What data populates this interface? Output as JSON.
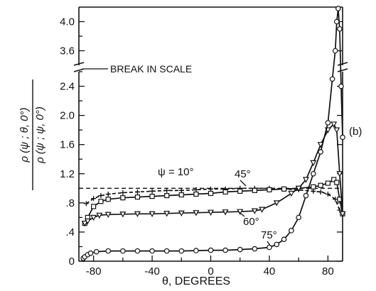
{
  "chart_data": {
    "type": "line",
    "panel_tag": "(b)",
    "xlabel": "θ, DEGREES",
    "ylabel_numerator": "ρ (ψ ; θ, 0°)",
    "ylabel_denominator": "ρ (ψ ; ψ, 0°)",
    "break_label": "BREAK IN SCALE",
    "x_ticks": [
      "-80",
      "-40",
      "0",
      "40",
      "80"
    ],
    "y_ticks_lower": [
      "0",
      ".4",
      ".8",
      "1.2",
      "1.6",
      "2.0",
      "2.4"
    ],
    "y_ticks_upper": [
      "3.6",
      "4.0"
    ],
    "xlim": [
      -90,
      90
    ],
    "ylim_lower": [
      0,
      2.6
    ],
    "ylim_upper": [
      3.4,
      4.2
    ],
    "reference_line_y": 1.0,
    "series": [
      {
        "name": "ψ = 10°",
        "marker": "plus",
        "x": [
          -85,
          -80,
          -75,
          -70,
          -60,
          -50,
          -40,
          -30,
          -20,
          -10,
          0,
          10,
          20,
          30,
          40,
          50,
          60,
          70,
          75,
          80,
          85,
          88
        ],
        "y": [
          0.79,
          0.86,
          0.9,
          0.92,
          0.94,
          0.95,
          0.96,
          0.97,
          0.97,
          0.98,
          0.99,
          0.99,
          1.0,
          1.0,
          1.0,
          0.99,
          0.98,
          0.96,
          0.95,
          0.92,
          0.85,
          0.7
        ]
      },
      {
        "name": "45°",
        "marker": "square",
        "x": [
          -86,
          -84,
          -80,
          -75,
          -70,
          -60,
          -50,
          -40,
          -30,
          -20,
          -10,
          0,
          10,
          20,
          30,
          40,
          50,
          60,
          70,
          75,
          80,
          84,
          86,
          88,
          90
        ],
        "y": [
          0.52,
          0.6,
          0.75,
          0.82,
          0.85,
          0.87,
          0.88,
          0.89,
          0.9,
          0.91,
          0.92,
          0.93,
          0.95,
          0.96,
          0.97,
          0.98,
          0.99,
          1.0,
          1.02,
          1.04,
          1.07,
          1.12,
          1.08,
          0.85,
          0.65
        ]
      },
      {
        "name": "60°",
        "marker": "triangle",
        "x": [
          -86,
          -84,
          -80,
          -76,
          -70,
          -60,
          -50,
          -40,
          -30,
          -20,
          -10,
          0,
          10,
          20,
          30,
          35,
          45,
          55,
          60,
          65,
          70,
          75,
          80,
          84,
          86,
          88,
          90
        ],
        "y": [
          0.52,
          0.55,
          0.6,
          0.63,
          0.64,
          0.645,
          0.65,
          0.65,
          0.655,
          0.66,
          0.665,
          0.67,
          0.675,
          0.68,
          0.69,
          0.71,
          0.8,
          0.93,
          1.0,
          1.12,
          1.35,
          1.6,
          1.8,
          1.88,
          1.8,
          1.2,
          0.65
        ]
      },
      {
        "name": "75°",
        "marker": "circle",
        "x": [
          -87,
          -86,
          -84,
          -82,
          -78,
          -70,
          -60,
          -50,
          -40,
          -30,
          -20,
          -10,
          0,
          10,
          20,
          30,
          40,
          45,
          50,
          55,
          60,
          65,
          70,
          75,
          80,
          83,
          85,
          86,
          87,
          88,
          89,
          90
        ],
        "y": [
          0.04,
          0.06,
          0.09,
          0.11,
          0.13,
          0.14,
          0.14,
          0.14,
          0.14,
          0.14,
          0.14,
          0.145,
          0.15,
          0.15,
          0.16,
          0.17,
          0.19,
          0.23,
          0.3,
          0.42,
          0.6,
          0.9,
          1.2,
          1.5,
          1.9,
          2.5,
          3.6,
          4.0,
          4.18,
          3.9,
          2.4,
          1.7
        ]
      }
    ],
    "annotations": [
      {
        "text": "ψ = 10°",
        "series": 0
      },
      {
        "text": "45°",
        "series": 1
      },
      {
        "text": "60°",
        "series": 2
      },
      {
        "text": "75°",
        "series": 3
      }
    ]
  }
}
